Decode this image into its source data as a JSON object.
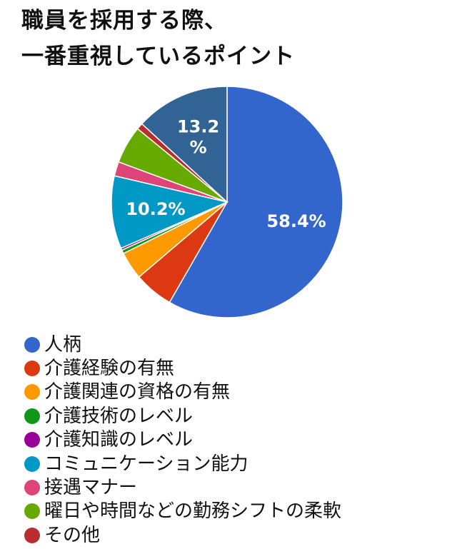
{
  "title": {
    "line1": "職員を採用する際、",
    "line2": "一番重視しているポイント"
  },
  "chart_data": {
    "type": "pie",
    "categories": [
      "人柄",
      "介護経験の有無",
      "介護関連の資格の有無",
      "介護技術のレベル",
      "介護知識のレベル",
      "コミュニケーション能力",
      "接遇マナー",
      "曜日や時間などの勤務シフトの柔軟",
      "その他",
      ""
    ],
    "values": [
      58.4,
      5.5,
      3.9,
      0.5,
      0.3,
      10.2,
      2.0,
      5.3,
      0.9,
      13.2
    ],
    "colors": [
      "#3366cc",
      "#dc3912",
      "#ff9900",
      "#109618",
      "#990099",
      "#0099c6",
      "#dd4477",
      "#66aa00",
      "#b82e2e",
      "#316395"
    ],
    "data_labels": [
      "58.4%",
      "",
      "",
      "",
      "",
      "10.2%",
      "",
      "",
      "",
      "13.2\n%"
    ],
    "legend_position": "bottom-left"
  }
}
